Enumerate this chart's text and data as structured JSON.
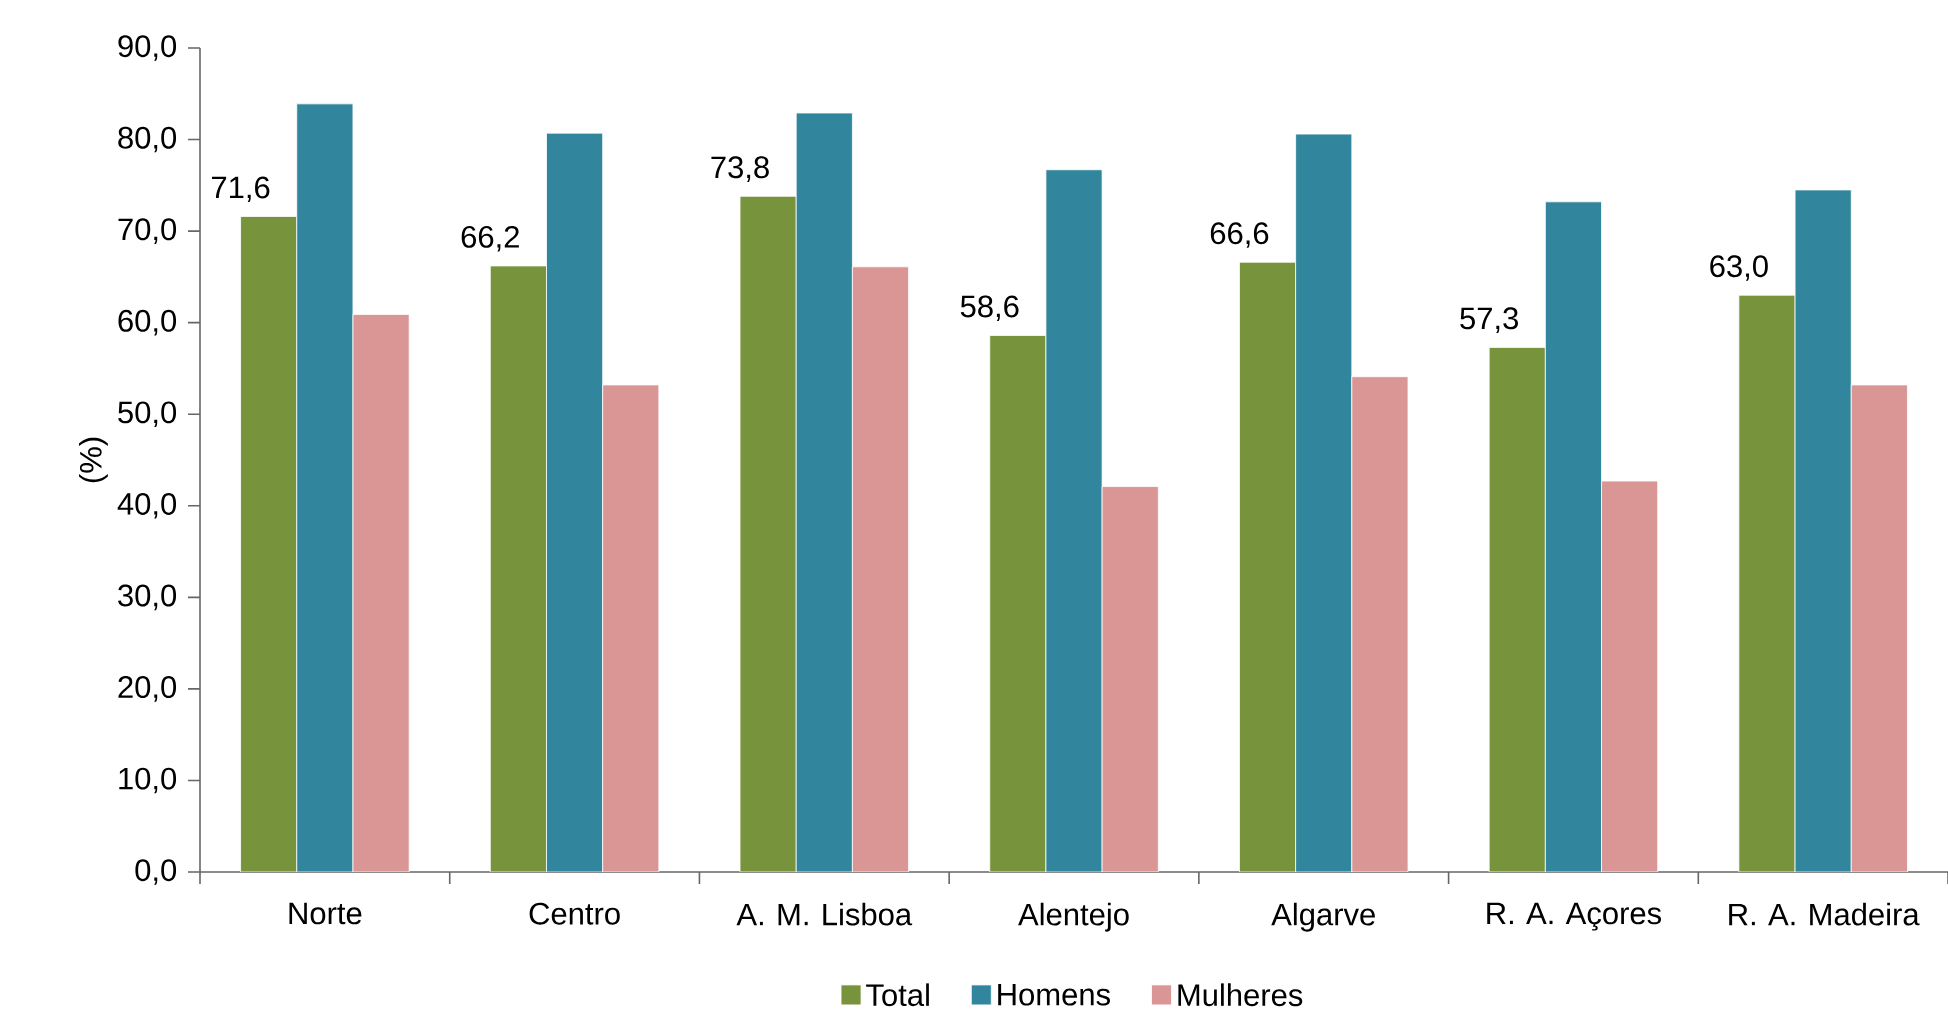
{
  "chart_data": {
    "type": "bar",
    "ylabel": "(%)",
    "categories": [
      "Norte",
      "Centro",
      "A. M. Lisboa",
      "Alentejo",
      "Algarve",
      "R. A. Açores",
      "R. A. Madeira"
    ],
    "series": [
      {
        "name": "Total",
        "color": "#77933c",
        "values": [
          71.6,
          66.2,
          73.8,
          58.6,
          66.6,
          57.3,
          63.0
        ],
        "value_labels": [
          "71,6",
          "66,2",
          "73,8",
          "58,6",
          "66,6",
          "57,3",
          "63,0"
        ]
      },
      {
        "name": "Homens",
        "color": "#31859c",
        "values": [
          83.9,
          80.7,
          82.9,
          76.7,
          80.6,
          73.2,
          74.5
        ]
      },
      {
        "name": "Mulheres",
        "color": "#d99694",
        "values": [
          60.9,
          53.2,
          66.1,
          42.1,
          54.1,
          42.7,
          53.2
        ]
      }
    ],
    "ylim": [
      0,
      90
    ],
    "yticks": [
      {
        "value": 0,
        "label": "0,0"
      },
      {
        "value": 10,
        "label": "10,0"
      },
      {
        "value": 20,
        "label": "20,0"
      },
      {
        "value": 30,
        "label": "30,0"
      },
      {
        "value": 40,
        "label": "40,0"
      },
      {
        "value": 50,
        "label": "50,0"
      },
      {
        "value": 60,
        "label": "60,0"
      },
      {
        "value": 70,
        "label": "70,0"
      },
      {
        "value": 80,
        "label": "80,0"
      },
      {
        "value": 90,
        "label": "90,0"
      }
    ],
    "legend": "bottom",
    "grid": false
  }
}
